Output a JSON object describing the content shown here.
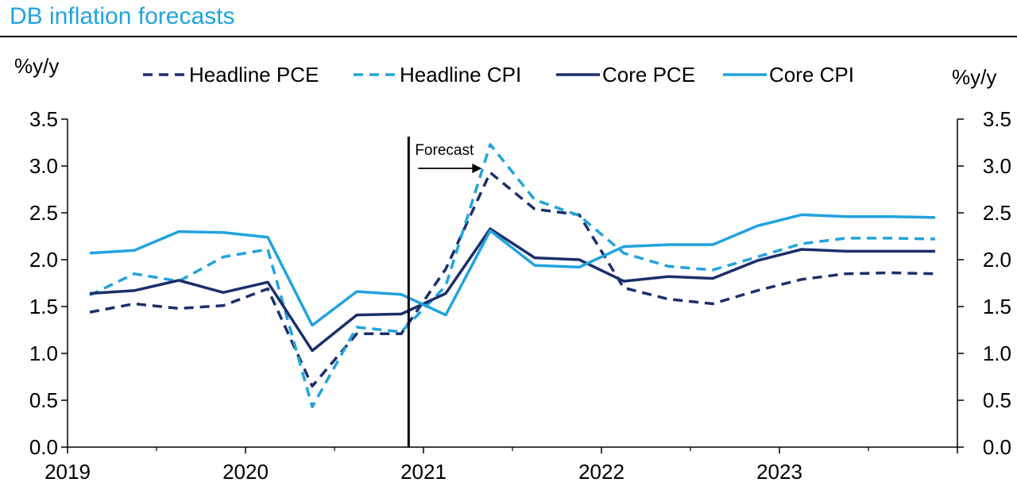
{
  "colors": {
    "navy": "#1b2f6b",
    "cyan": "#21a3dd",
    "title": "#21a3dd"
  },
  "chart_data": {
    "type": "line",
    "title": "DB inflation forecasts",
    "y_left_label": "%y/y",
    "y_right_label": "%y/y",
    "ylim": [
      0,
      3.5
    ],
    "yticks": [
      "0.0",
      "0.5",
      "1.0",
      "1.5",
      "2.0",
      "2.5",
      "3.0",
      "3.5"
    ],
    "xlim": [
      "2019-01",
      "2024-01"
    ],
    "x_tick_labels": [
      "2019",
      "2020",
      "2021",
      "2022",
      "2023"
    ],
    "x": [
      "2019-Q1",
      "2019-Q2",
      "2019-Q3",
      "2019-Q4",
      "2020-Q1",
      "2020-Q2",
      "2020-Q3",
      "2020-Q4",
      "2021-Q1",
      "2021-Q2",
      "2021-Q3",
      "2021-Q4",
      "2022-Q1",
      "2022-Q2",
      "2022-Q3",
      "2022-Q4",
      "2023-Q1",
      "2023-Q2",
      "2023-Q3",
      "2023-Q4"
    ],
    "forecast_start": "2020-12",
    "annotation": "Forecast",
    "legend_position": "top",
    "series": [
      {
        "name": "Headline PCE",
        "style": "dashed",
        "color": "#1b2f6b",
        "values": [
          1.44,
          1.53,
          1.48,
          1.51,
          1.69,
          0.65,
          1.21,
          1.21,
          1.9,
          2.93,
          2.54,
          2.48,
          1.7,
          1.58,
          1.53,
          1.67,
          1.79,
          1.85,
          1.86,
          1.85
        ]
      },
      {
        "name": "Headline CPI",
        "style": "dashed",
        "color": "#21a3dd",
        "values": [
          1.62,
          1.85,
          1.77,
          2.03,
          2.11,
          0.43,
          1.28,
          1.23,
          1.72,
          3.23,
          2.64,
          2.47,
          2.07,
          1.93,
          1.89,
          2.03,
          2.17,
          2.23,
          2.23,
          2.22
        ]
      },
      {
        "name": "Core PCE",
        "style": "solid",
        "color": "#1b2f6b",
        "values": [
          1.64,
          1.67,
          1.78,
          1.65,
          1.76,
          1.03,
          1.41,
          1.42,
          1.64,
          2.33,
          2.02,
          2.0,
          1.77,
          1.82,
          1.8,
          1.99,
          2.11,
          2.09,
          2.09,
          2.09
        ]
      },
      {
        "name": "Core CPI",
        "style": "solid",
        "color": "#21a3dd",
        "values": [
          2.07,
          2.1,
          2.3,
          2.29,
          2.24,
          1.3,
          1.66,
          1.63,
          1.41,
          2.31,
          1.94,
          1.92,
          2.14,
          2.16,
          2.16,
          2.36,
          2.48,
          2.46,
          2.46,
          2.45
        ]
      }
    ]
  }
}
